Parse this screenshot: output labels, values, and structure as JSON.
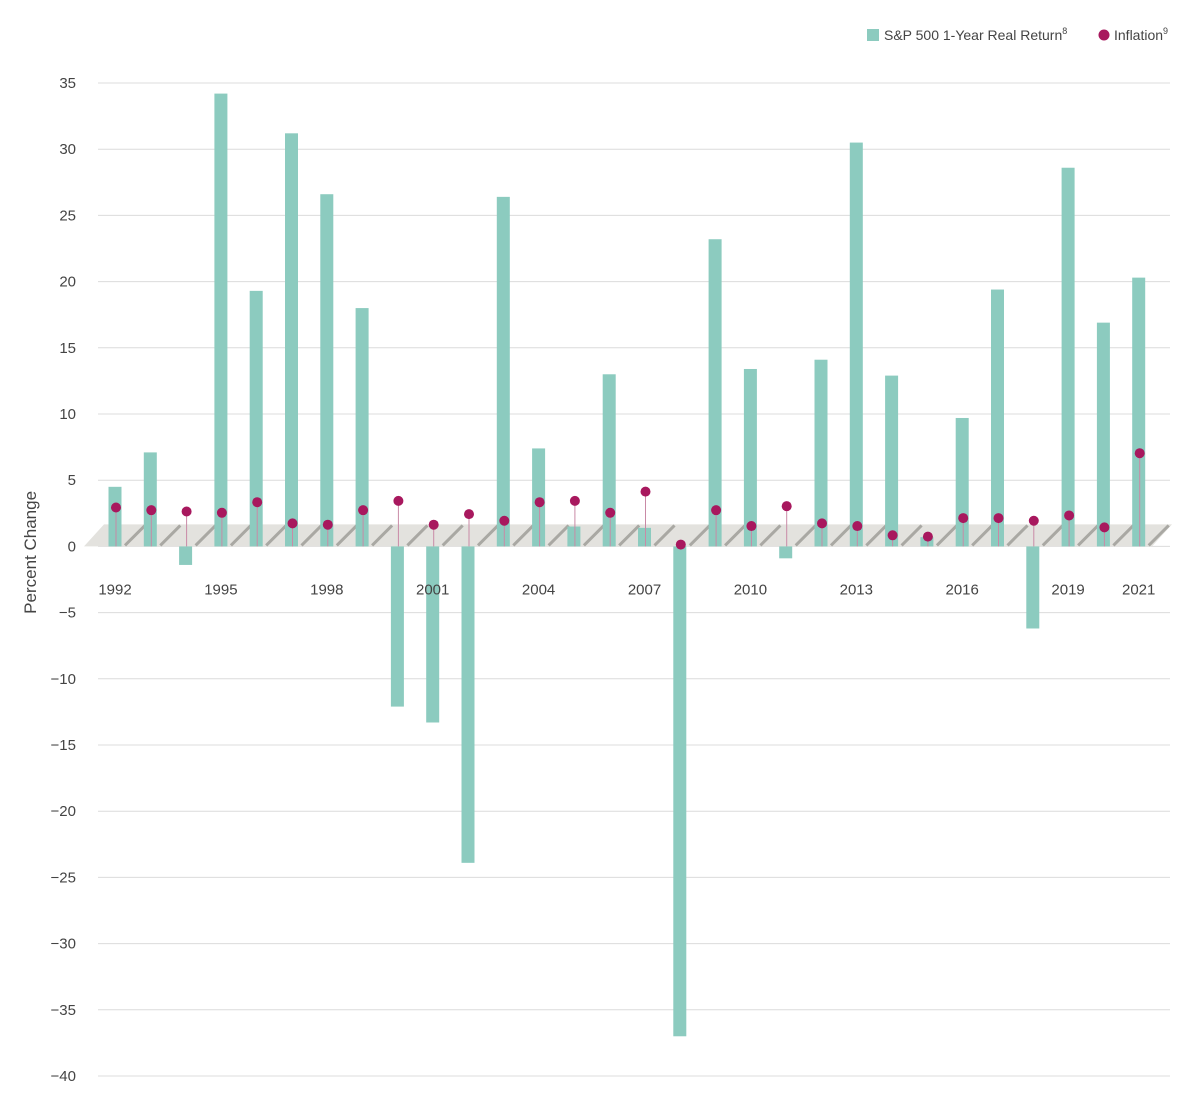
{
  "chart_data": {
    "type": "bar",
    "ylabel": "Percent Change",
    "ylim": [
      -40,
      35
    ],
    "ytick_step": 5,
    "grid": true,
    "legend_position": "top-right",
    "x": [
      1992,
      1993,
      1994,
      1995,
      1996,
      1997,
      1998,
      1999,
      2000,
      2001,
      2002,
      2003,
      2004,
      2005,
      2006,
      2007,
      2008,
      2009,
      2010,
      2011,
      2012,
      2013,
      2014,
      2015,
      2016,
      2017,
      2018,
      2019,
      2020,
      2021
    ],
    "xtick_labels": [
      "1992",
      "1995",
      "1998",
      "2001",
      "2004",
      "2007",
      "2010",
      "2013",
      "2016",
      "2019",
      "2021"
    ],
    "series": [
      {
        "name": "S&P 500 1-Year Real Return",
        "superscript": "8",
        "kind": "bar",
        "color": "#8ccbbf",
        "values": [
          4.5,
          7.1,
          -1.4,
          34.2,
          19.3,
          31.2,
          26.6,
          18.0,
          -12.1,
          -13.3,
          -23.9,
          26.4,
          7.4,
          1.5,
          13.0,
          1.4,
          -37.0,
          23.2,
          13.4,
          -0.9,
          14.1,
          30.5,
          12.9,
          0.7,
          9.7,
          19.4,
          -6.2,
          28.6,
          16.9,
          20.3
        ]
      },
      {
        "name": "Inflation",
        "superscript": "9",
        "kind": "dot",
        "color": "#a8185e",
        "values": [
          2.9,
          2.7,
          2.6,
          2.5,
          3.3,
          1.7,
          1.6,
          2.7,
          3.4,
          1.6,
          2.4,
          1.9,
          3.3,
          3.4,
          2.5,
          4.1,
          0.1,
          2.7,
          1.5,
          3.0,
          1.7,
          1.5,
          0.8,
          0.7,
          2.1,
          2.1,
          1.9,
          2.3,
          1.4,
          7.0
        ]
      }
    ]
  }
}
